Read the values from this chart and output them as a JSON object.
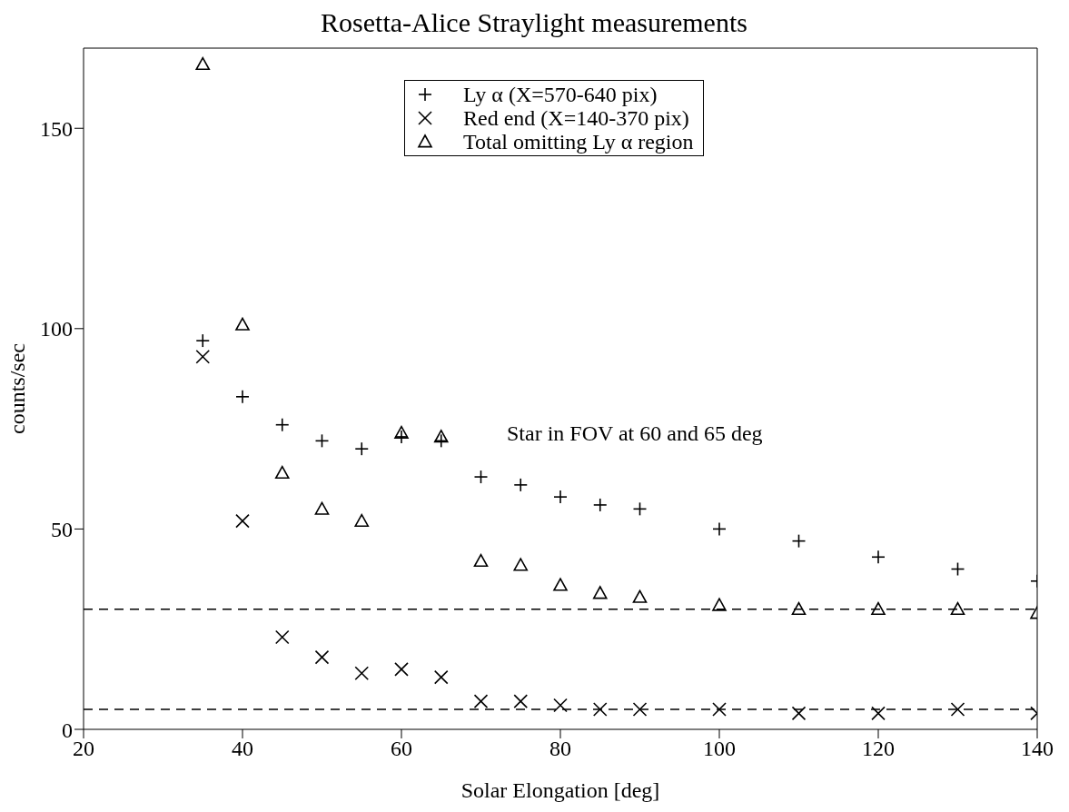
{
  "chart_data": {
    "type": "scatter",
    "title": "Rosetta-Alice Straylight measurements",
    "xlabel": "Solar Elongation [deg]",
    "ylabel": "counts/sec",
    "x": [
      35,
      40,
      45,
      50,
      55,
      60,
      65,
      70,
      75,
      80,
      85,
      90,
      100,
      110,
      120,
      130,
      140
    ],
    "series": [
      {
        "name": "Ly α (X=570-640 pix)",
        "color": "#000000",
        "marker": "plus",
        "values": [
          97,
          83,
          76,
          72,
          70,
          73,
          72,
          63,
          61,
          58,
          56,
          55,
          50,
          47,
          43,
          40,
          37
        ]
      },
      {
        "name": "Red end (X=140-370 pix)",
        "color": "#000000",
        "marker": "cross",
        "values": [
          93,
          52,
          23,
          18,
          14,
          15,
          13,
          7,
          7,
          6,
          5,
          5,
          5,
          4,
          4,
          5,
          4
        ]
      },
      {
        "name": "Total omitting Ly α region",
        "color": "#000000",
        "marker": "triangle",
        "values": [
          166,
          101,
          64,
          55,
          52,
          74,
          73,
          42,
          41,
          36,
          34,
          33,
          31,
          30,
          30,
          30,
          29
        ]
      }
    ],
    "xlim": [
      20,
      140
    ],
    "xticks": [
      20,
      40,
      60,
      80,
      100,
      120,
      140
    ],
    "ylim": [
      0,
      170
    ],
    "yticks": [
      0,
      50,
      100,
      150
    ],
    "ref_lines": [
      {
        "axis": "y",
        "value": 30,
        "color": "#000000",
        "line_style": "dashed"
      },
      {
        "axis": "y",
        "value": 5,
        "color": "#000000",
        "line_style": "dashed"
      }
    ],
    "annotations": [
      "Star in FOV at 60 and 65 deg"
    ],
    "legend": "top right"
  }
}
